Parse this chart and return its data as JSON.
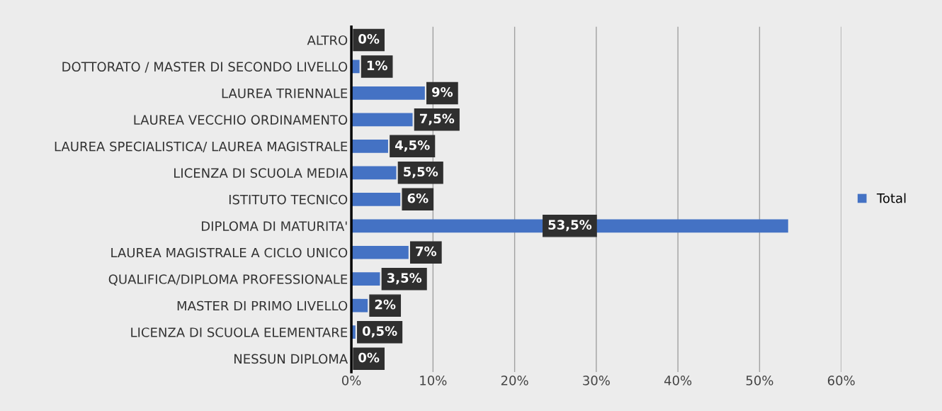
{
  "chart_data": {
    "type": "bar",
    "orientation": "horizontal",
    "categories": [
      "ALTRO",
      "DOTTORATO / MASTER DI SECONDO LIVELLO",
      "LAUREA TRIENNALE",
      "LAUREA VECCHIO ORDINAMENTO",
      "LAUREA SPECIALISTICA/ LAUREA MAGISTRALE",
      "LICENZA DI SCUOLA MEDIA",
      "ISTITUTO TECNICO",
      "DIPLOMA DI MATURITA'",
      "LAUREA MAGISTRALE A CICLO UNICO",
      "QUALIFICA/DIPLOMA PROFESSIONALE",
      "MASTER DI PRIMO LIVELLO",
      "LICENZA DI SCUOLA ELEMENTARE",
      "NESSUN DIPLOMA"
    ],
    "series": [
      {
        "name": "Total",
        "color": "#4472c4",
        "values": [
          0,
          1,
          9,
          7.5,
          4.5,
          5.5,
          6,
          53.5,
          7,
          3.5,
          2,
          0.5,
          0
        ],
        "value_labels": [
          "0%",
          "1%",
          "9%",
          "7,5%",
          "4,5%",
          "5,5%",
          "6%",
          "53,5%",
          "7%",
          "3,5%",
          "2%",
          "0,5%",
          "0%"
        ]
      }
    ],
    "xlim": [
      0,
      60
    ],
    "xticks": [
      {
        "value": 0,
        "label": "0%"
      },
      {
        "value": 10,
        "label": "10%"
      },
      {
        "value": 20,
        "label": "20%"
      },
      {
        "value": 30,
        "label": "30%"
      },
      {
        "value": 40,
        "label": "40%"
      },
      {
        "value": 50,
        "label": "50%"
      },
      {
        "value": 60,
        "label": "60%"
      }
    ],
    "grid": "x",
    "legend": "right"
  }
}
